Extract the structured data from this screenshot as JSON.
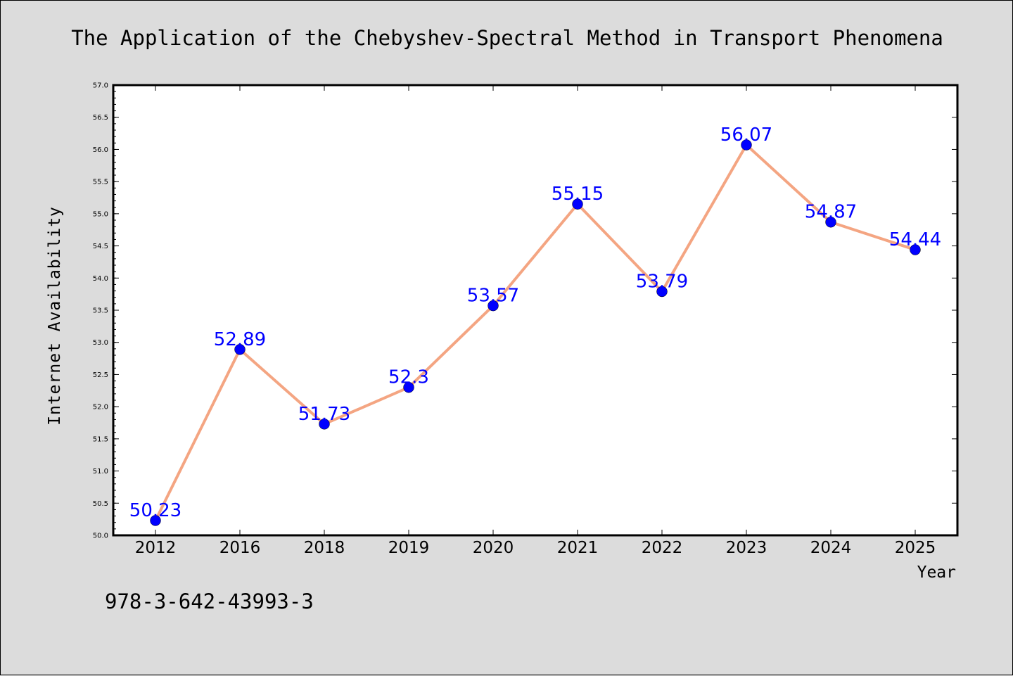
{
  "chart_data": {
    "type": "line",
    "title": "The Application of the Chebyshev-Spectral Method in Transport Phenomena",
    "xlabel": "Year",
    "ylabel": "Internet Availability",
    "categories": [
      "2012",
      "2016",
      "2018",
      "2019",
      "2020",
      "2021",
      "2022",
      "2023",
      "2024",
      "2025"
    ],
    "values": [
      50.23,
      52.89,
      51.73,
      52.3,
      53.57,
      55.15,
      53.79,
      56.07,
      54.87,
      54.44
    ],
    "data_labels": [
      "50.23",
      "52.89",
      "51.73",
      "52.3",
      "53.57",
      "55.15",
      "53.79",
      "56.07",
      "54.87",
      "54.44"
    ],
    "ylim": [
      50.0,
      57.0
    ],
    "yticks": [
      "50.0",
      "50.5",
      "51.0",
      "51.5",
      "52.0",
      "52.5",
      "53.0",
      "53.5",
      "54.0",
      "54.5",
      "55.0",
      "55.5",
      "56.0",
      "56.5",
      "57.0"
    ],
    "grid": false,
    "line_color": "#f4a582",
    "marker_color": "#0000ff",
    "label_color": "#0000ff"
  },
  "footer": {
    "isbn": "978-3-642-43993-3"
  }
}
